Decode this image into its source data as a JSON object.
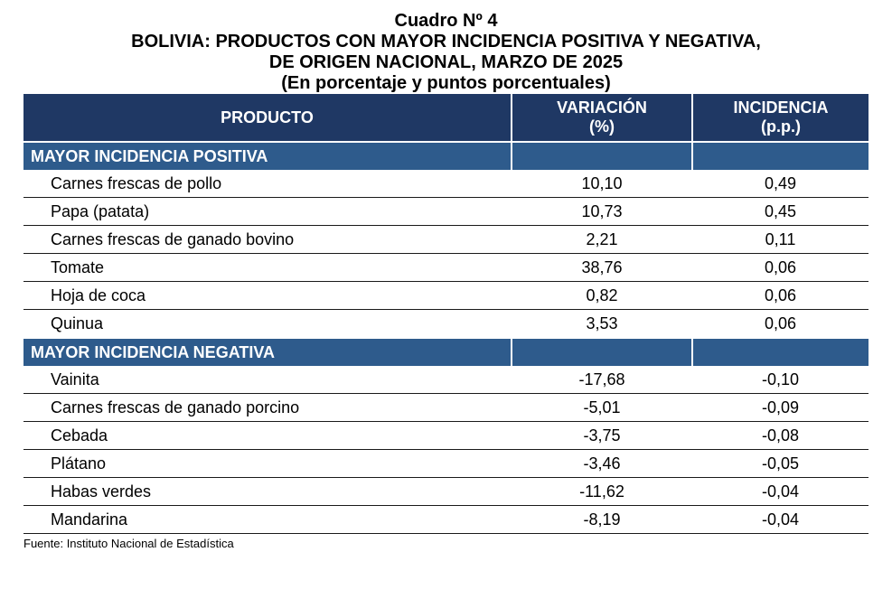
{
  "title": {
    "line1": "Cuadro Nº 4",
    "line2": "BOLIVIA: PRODUCTOS CON MAYOR INCIDENCIA POSITIVA Y NEGATIVA,",
    "line3": "DE ORIGEN NACIONAL, MARZO DE 2025",
    "line4": "(En porcentaje y puntos porcentuales)"
  },
  "table": {
    "headers": {
      "product": "PRODUCTO",
      "variation_1": "VARIACIÓN",
      "variation_2": "(%)",
      "incidence_1": "INCIDENCIA",
      "incidence_2": "(p.p.)"
    },
    "positive": {
      "label": "MAYOR INCIDENCIA POSITIVA",
      "rows": [
        {
          "product": "Carnes frescas de pollo",
          "variation": "10,10",
          "incidence": "0,49"
        },
        {
          "product": "Papa (patata)",
          "variation": "10,73",
          "incidence": "0,45"
        },
        {
          "product": "Carnes frescas de ganado bovino",
          "variation": "2,21",
          "incidence": "0,11"
        },
        {
          "product": "Tomate",
          "variation": "38,76",
          "incidence": "0,06"
        },
        {
          "product": "Hoja de coca",
          "variation": "0,82",
          "incidence": "0,06"
        },
        {
          "product": "Quinua",
          "variation": "3,53",
          "incidence": "0,06"
        }
      ]
    },
    "negative": {
      "label": "MAYOR INCIDENCIA NEGATIVA",
      "rows": [
        {
          "product": "Vainita",
          "variation": "-17,68",
          "incidence": "-0,10"
        },
        {
          "product": "Carnes frescas de ganado porcino",
          "variation": "-5,01",
          "incidence": "-0,09"
        },
        {
          "product": "Cebada",
          "variation": "-3,75",
          "incidence": "-0,08"
        },
        {
          "product": "Plátano",
          "variation": "-3,46",
          "incidence": "-0,05"
        },
        {
          "product": "Habas verdes",
          "variation": "-11,62",
          "incidence": "-0,04"
        },
        {
          "product": "Mandarina",
          "variation": "-8,19",
          "incidence": "-0,04"
        }
      ]
    }
  },
  "footer": "Fuente: Instituto Nacional de Estadística",
  "colors": {
    "header_bg": "#1f3864",
    "section_bg": "#2e5b8c"
  }
}
